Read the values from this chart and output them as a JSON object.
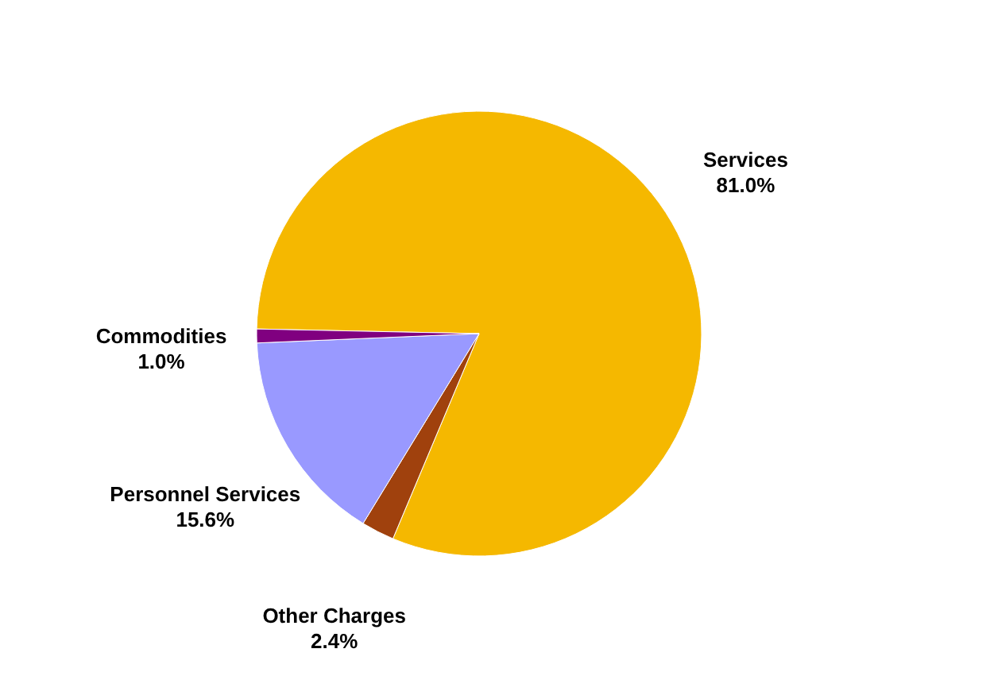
{
  "chart_data": {
    "type": "pie",
    "categories": [
      "Services",
      "Other Charges",
      "Personnel Services",
      "Commodities"
    ],
    "values": [
      81.0,
      2.4,
      15.6,
      1.0
    ],
    "value_labels": [
      "81.0%",
      "2.4%",
      "15.6%",
      "1.0%"
    ],
    "colors": [
      "#f5b800",
      "#a0410d",
      "#9999ff",
      "#800080"
    ],
    "legend": false
  }
}
